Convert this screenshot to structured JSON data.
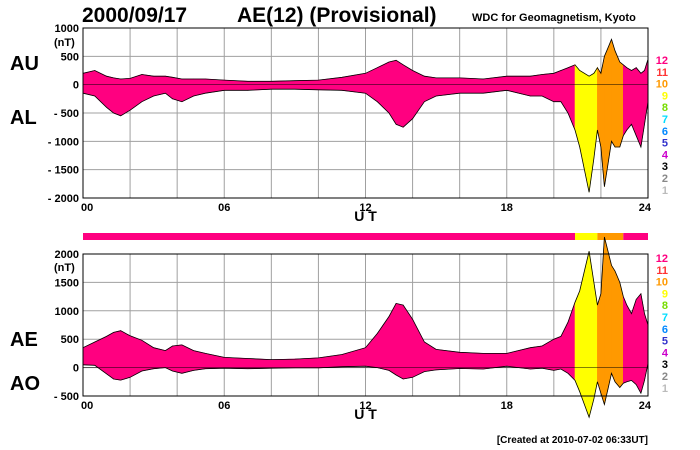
{
  "header": {
    "date": "2000/09/17",
    "title": "AE(12) (Provisional)",
    "source": "WDC for Geomagnetism, Kyoto"
  },
  "footer": {
    "created": "[Created at 2010-07-02 06:33UT]"
  },
  "colors": {
    "background": "#ffffff",
    "grid": "#a0a0a0",
    "fill_12": "#ff0080",
    "fill_10": "#ff9900",
    "fill_9": "#ffff00",
    "outline": "#000000"
  },
  "legend": [
    {
      "label": "12",
      "color": "#ff0080"
    },
    {
      "label": "11",
      "color": "#ff3333"
    },
    {
      "label": "10",
      "color": "#ff9900"
    },
    {
      "label": "9",
      "color": "#ffff00"
    },
    {
      "label": "8",
      "color": "#77dd00"
    },
    {
      "label": "7",
      "color": "#00ddff"
    },
    {
      "label": "6",
      "color": "#0088ff"
    },
    {
      "label": "5",
      "color": "#3333cc"
    },
    {
      "label": "4",
      "color": "#cc00cc"
    },
    {
      "label": "3",
      "color": "#000000"
    },
    {
      "label": "2",
      "color": "#888888"
    },
    {
      "label": "1",
      "color": "#bbbbbb"
    }
  ],
  "station_bar": {
    "segments": [
      {
        "from": 0,
        "to": 20.9,
        "stations": 12,
        "color": "#ff0080"
      },
      {
        "from": 20.9,
        "to": 21.85,
        "stations": 9,
        "color": "#ffff00"
      },
      {
        "from": 21.85,
        "to": 22.95,
        "stations": 10,
        "color": "#ff9900"
      },
      {
        "from": 22.95,
        "to": 24,
        "stations": 12,
        "color": "#ff0080"
      }
    ]
  },
  "chart_data": [
    {
      "type": "area",
      "labels": {
        "upper": "AU",
        "lower": "AL"
      },
      "unit": "(nT)",
      "xlabel": "U T",
      "xlim": [
        0,
        24
      ],
      "xticks": [
        0,
        6,
        12,
        18,
        24
      ],
      "xtick_labels": [
        "00",
        "06",
        "12",
        "18",
        "24"
      ],
      "ylim": [
        -2000,
        1000
      ],
      "yticks": [
        1000,
        500,
        0,
        -500,
        -1000,
        -1500,
        -2000
      ],
      "ytick_labels": [
        "1000",
        "500",
        "0",
        "- 500",
        "- 1000",
        "- 1500",
        "- 2000"
      ],
      "grid": true,
      "x": [
        0.0,
        0.5,
        1.0,
        1.3,
        1.6,
        2.0,
        2.5,
        3.0,
        3.5,
        3.8,
        4.2,
        4.7,
        5.2,
        6.0,
        7.0,
        8.0,
        9.0,
        10.0,
        11.0,
        12.0,
        12.5,
        13.0,
        13.3,
        13.6,
        14.0,
        14.5,
        15.0,
        16.0,
        17.0,
        18.0,
        19.0,
        19.5,
        20.0,
        20.3,
        20.6,
        20.9,
        21.1,
        21.3,
        21.5,
        21.7,
        21.85,
        22.0,
        22.15,
        22.3,
        22.45,
        22.6,
        22.8,
        22.95,
        23.1,
        23.3,
        23.5,
        23.7,
        23.85,
        24.0
      ],
      "series": [
        {
          "name": "AU",
          "values": [
            200,
            250,
            150,
            120,
            100,
            110,
            180,
            150,
            150,
            130,
            100,
            100,
            100,
            80,
            60,
            60,
            70,
            80,
            130,
            200,
            300,
            400,
            430,
            350,
            250,
            150,
            120,
            120,
            100,
            150,
            150,
            180,
            200,
            250,
            300,
            350,
            250,
            200,
            150,
            200,
            300,
            200,
            500,
            650,
            800,
            600,
            400,
            350,
            300,
            250,
            300,
            200,
            250,
            450
          ]
        },
        {
          "name": "AL",
          "values": [
            -150,
            -200,
            -400,
            -500,
            -550,
            -450,
            -300,
            -200,
            -150,
            -250,
            -300,
            -200,
            -150,
            -100,
            -100,
            -80,
            -80,
            -90,
            -100,
            -150,
            -300,
            -500,
            -700,
            -750,
            -600,
            -300,
            -200,
            -150,
            -150,
            -100,
            -200,
            -200,
            -300,
            -300,
            -500,
            -800,
            -1100,
            -1500,
            -1900,
            -1300,
            -800,
            -1100,
            -1800,
            -1400,
            -1000,
            -1100,
            -1100,
            -900,
            -800,
            -700,
            -900,
            -1100,
            -700,
            -300
          ]
        }
      ]
    },
    {
      "type": "area",
      "labels": {
        "upper": "AE",
        "lower": "AO"
      },
      "unit": "(nT)",
      "xlabel": "U T",
      "xlim": [
        0,
        24
      ],
      "xticks": [
        0,
        6,
        12,
        18,
        24
      ],
      "xtick_labels": [
        "00",
        "06",
        "12",
        "18",
        "24"
      ],
      "ylim": [
        -500,
        2000
      ],
      "yticks": [
        2000,
        1500,
        1000,
        500,
        0,
        -500
      ],
      "ytick_labels": [
        "2000",
        "1500",
        "1000",
        "500",
        "0",
        "- 500"
      ],
      "grid": true,
      "x": [
        0.0,
        0.5,
        1.0,
        1.3,
        1.6,
        2.0,
        2.5,
        3.0,
        3.5,
        3.8,
        4.2,
        4.7,
        5.2,
        6.0,
        7.0,
        8.0,
        9.0,
        10.0,
        11.0,
        12.0,
        12.5,
        13.0,
        13.3,
        13.6,
        14.0,
        14.5,
        15.0,
        16.0,
        17.0,
        18.0,
        19.0,
        19.5,
        20.0,
        20.3,
        20.6,
        20.9,
        21.1,
        21.3,
        21.5,
        21.7,
        21.85,
        22.0,
        22.15,
        22.3,
        22.45,
        22.6,
        22.8,
        22.95,
        23.1,
        23.3,
        23.5,
        23.7,
        23.85,
        24.0
      ],
      "series": [
        {
          "name": "AE",
          "values": [
            350,
            450,
            550,
            620,
            650,
            560,
            480,
            350,
            300,
            380,
            400,
            300,
            250,
            180,
            160,
            140,
            150,
            170,
            230,
            350,
            600,
            900,
            1130,
            1100,
            850,
            450,
            320,
            270,
            250,
            250,
            350,
            380,
            500,
            550,
            800,
            1150,
            1350,
            1700,
            2050,
            1500,
            1100,
            1300,
            2300,
            2050,
            1800,
            1700,
            1500,
            1250,
            1100,
            950,
            1200,
            1300,
            950,
            750
          ]
        },
        {
          "name": "AO",
          "values": [
            50,
            40,
            -110,
            -200,
            -220,
            -170,
            -60,
            -20,
            0,
            -60,
            -100,
            -50,
            -20,
            -10,
            -20,
            -10,
            -5,
            -5,
            15,
            25,
            0,
            -50,
            -130,
            -200,
            -170,
            -70,
            -40,
            -15,
            -25,
            25,
            -25,
            -10,
            -50,
            -25,
            -100,
            -225,
            -425,
            -650,
            -875,
            -550,
            -250,
            -450,
            -650,
            -375,
            -100,
            -250,
            -350,
            -275,
            -250,
            -225,
            -300,
            -450,
            -225,
            75
          ]
        }
      ]
    }
  ]
}
